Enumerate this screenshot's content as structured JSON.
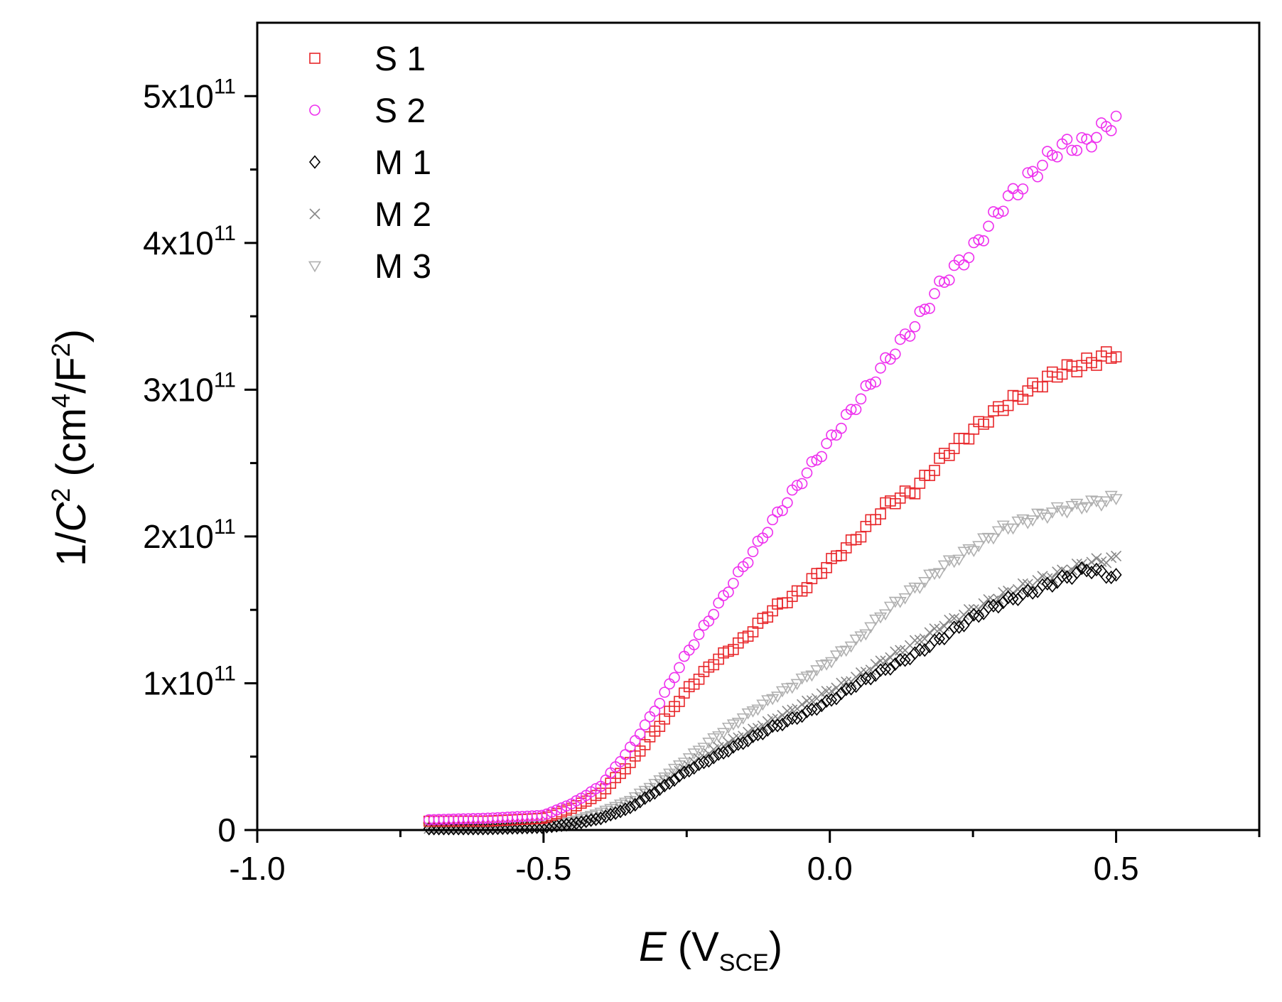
{
  "chart_data": {
    "type": "scatter",
    "title": "",
    "xlabel": {
      "main": "E",
      "open": " (V",
      "sub": "SCE",
      "close": ")"
    },
    "ylabel": {
      "prefix": "1/",
      "var": "C",
      "sup": "2",
      "unit_open": " (cm",
      "unit_sup": "4",
      "unit_mid": "/F",
      "unit_sup2": "2",
      "unit_close": ")"
    },
    "xlim": [
      -1.0,
      0.75
    ],
    "ylim": [
      0,
      550000000000.0
    ],
    "x_ticks": [
      {
        "value": -1.0,
        "label": "-1.0"
      },
      {
        "value": -0.5,
        "label": "-0.5"
      },
      {
        "value": 0.0,
        "label": "0.0"
      },
      {
        "value": 0.5,
        "label": "0.5"
      }
    ],
    "x_minor_ticks": [
      -0.75,
      -0.25,
      0.25,
      0.75
    ],
    "y_ticks": [
      {
        "value": 0,
        "base": "0",
        "exp": ""
      },
      {
        "value": 100000000000.0,
        "base": "1x10",
        "exp": "11"
      },
      {
        "value": 200000000000.0,
        "base": "2x10",
        "exp": "11"
      },
      {
        "value": 300000000000.0,
        "base": "3x10",
        "exp": "11"
      },
      {
        "value": 400000000000.0,
        "base": "4x10",
        "exp": "11"
      },
      {
        "value": 500000000000.0,
        "base": "5x10",
        "exp": "11"
      }
    ],
    "y_minor_ticks": [
      50000000000.0,
      150000000000.0,
      250000000000.0,
      350000000000.0,
      450000000000.0
    ],
    "legend_position": "top-left",
    "x_range": [
      -0.7,
      0.5
    ],
    "series": [
      {
        "name": "S 1",
        "marker": "square",
        "color": "#e8262a",
        "points": [
          [
            -0.7,
            6000000000.0
          ],
          [
            -0.6,
            6000000000.0
          ],
          [
            -0.5,
            8000000000.0
          ],
          [
            -0.45,
            15000000000.0
          ],
          [
            -0.4,
            25000000000.0
          ],
          [
            -0.35,
            45000000000.0
          ],
          [
            -0.3,
            70000000000.0
          ],
          [
            -0.25,
            95000000000.0
          ],
          [
            -0.2,
            115000000000.0
          ],
          [
            -0.15,
            130000000000.0
          ],
          [
            -0.1,
            150000000000.0
          ],
          [
            -0.05,
            163000000000.0
          ],
          [
            0.0,
            182000000000.0
          ],
          [
            0.05,
            200000000000.0
          ],
          [
            0.1,
            222000000000.0
          ],
          [
            0.15,
            232000000000.0
          ],
          [
            0.2,
            255000000000.0
          ],
          [
            0.25,
            272000000000.0
          ],
          [
            0.3,
            288000000000.0
          ],
          [
            0.35,
            300000000000.0
          ],
          [
            0.4,
            312000000000.0
          ],
          [
            0.45,
            318000000000.0
          ],
          [
            0.5,
            325000000000.0
          ]
        ]
      },
      {
        "name": "S 2",
        "marker": "circle",
        "color": "#ee30ee",
        "points": [
          [
            -0.7,
            7000000000.0
          ],
          [
            -0.6,
            8000000000.0
          ],
          [
            -0.5,
            10000000000.0
          ],
          [
            -0.45,
            18000000000.0
          ],
          [
            -0.4,
            30000000000.0
          ],
          [
            -0.35,
            55000000000.0
          ],
          [
            -0.3,
            85000000000.0
          ],
          [
            -0.25,
            120000000000.0
          ],
          [
            -0.2,
            150000000000.0
          ],
          [
            -0.15,
            180000000000.0
          ],
          [
            -0.1,
            210000000000.0
          ],
          [
            -0.05,
            238000000000.0
          ],
          [
            0.0,
            265000000000.0
          ],
          [
            0.05,
            292000000000.0
          ],
          [
            0.1,
            320000000000.0
          ],
          [
            0.15,
            345000000000.0
          ],
          [
            0.2,
            375000000000.0
          ],
          [
            0.25,
            395000000000.0
          ],
          [
            0.3,
            425000000000.0
          ],
          [
            0.35,
            445000000000.0
          ],
          [
            0.4,
            465000000000.0
          ],
          [
            0.45,
            468000000000.0
          ],
          [
            0.5,
            485000000000.0
          ]
        ]
      },
      {
        "name": "M 1",
        "marker": "diamond",
        "color": "#000000",
        "points": [
          [
            -0.7,
            1000000000.0
          ],
          [
            -0.6,
            1000000000.0
          ],
          [
            -0.5,
            2000000000.0
          ],
          [
            -0.45,
            4000000000.0
          ],
          [
            -0.4,
            8000000000.0
          ],
          [
            -0.35,
            15000000000.0
          ],
          [
            -0.3,
            27000000000.0
          ],
          [
            -0.25,
            40000000000.0
          ],
          [
            -0.2,
            50000000000.0
          ],
          [
            -0.15,
            60000000000.0
          ],
          [
            -0.1,
            70000000000.0
          ],
          [
            -0.05,
            78000000000.0
          ],
          [
            0.0,
            88000000000.0
          ],
          [
            0.05,
            100000000000.0
          ],
          [
            0.1,
            110000000000.0
          ],
          [
            0.15,
            120000000000.0
          ],
          [
            0.2,
            132000000000.0
          ],
          [
            0.25,
            145000000000.0
          ],
          [
            0.3,
            155000000000.0
          ],
          [
            0.35,
            162000000000.0
          ],
          [
            0.4,
            170000000000.0
          ],
          [
            0.45,
            178000000000.0
          ],
          [
            0.5,
            172000000000.0
          ]
        ]
      },
      {
        "name": "M 2",
        "marker": "cross",
        "color": "#888888",
        "points": [
          [
            -0.7,
            1000000000.0
          ],
          [
            -0.6,
            1000000000.0
          ],
          [
            -0.5,
            2000000000.0
          ],
          [
            -0.45,
            5000000000.0
          ],
          [
            -0.4,
            9000000000.0
          ],
          [
            -0.35,
            17000000000.0
          ],
          [
            -0.3,
            30000000000.0
          ],
          [
            -0.25,
            43000000000.0
          ],
          [
            -0.2,
            55000000000.0
          ],
          [
            -0.15,
            65000000000.0
          ],
          [
            -0.1,
            75000000000.0
          ],
          [
            -0.05,
            85000000000.0
          ],
          [
            0.0,
            95000000000.0
          ],
          [
            0.05,
            105000000000.0
          ],
          [
            0.1,
            117000000000.0
          ],
          [
            0.15,
            128000000000.0
          ],
          [
            0.2,
            140000000000.0
          ],
          [
            0.25,
            150000000000.0
          ],
          [
            0.3,
            160000000000.0
          ],
          [
            0.35,
            168000000000.0
          ],
          [
            0.4,
            175000000000.0
          ],
          [
            0.45,
            182000000000.0
          ],
          [
            0.5,
            185000000000.0
          ]
        ]
      },
      {
        "name": "M 3",
        "marker": "triangle-down",
        "color": "#b0b0b0",
        "points": [
          [
            -0.7,
            2000000000.0
          ],
          [
            -0.6,
            2000000000.0
          ],
          [
            -0.5,
            3000000000.0
          ],
          [
            -0.45,
            6000000000.0
          ],
          [
            -0.4,
            12000000000.0
          ],
          [
            -0.35,
            20000000000.0
          ],
          [
            -0.3,
            33000000000.0
          ],
          [
            -0.25,
            48000000000.0
          ],
          [
            -0.2,
            63000000000.0
          ],
          [
            -0.15,
            77000000000.0
          ],
          [
            -0.1,
            90000000000.0
          ],
          [
            -0.05,
            102000000000.0
          ],
          [
            0.0,
            115000000000.0
          ],
          [
            0.05,
            130000000000.0
          ],
          [
            0.1,
            150000000000.0
          ],
          [
            0.15,
            165000000000.0
          ],
          [
            0.2,
            180000000000.0
          ],
          [
            0.25,
            192000000000.0
          ],
          [
            0.3,
            205000000000.0
          ],
          [
            0.35,
            212000000000.0
          ],
          [
            0.4,
            218000000000.0
          ],
          [
            0.45,
            222000000000.0
          ],
          [
            0.5,
            226000000000.0
          ]
        ]
      }
    ]
  }
}
